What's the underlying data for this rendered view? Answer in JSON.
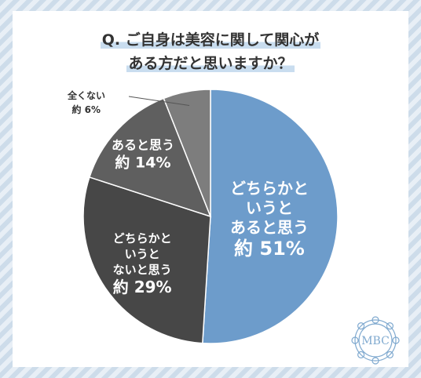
{
  "title": {
    "line1": "Q. ご自身は美容に関して関心が",
    "line2": "ある方だと思いますか？"
  },
  "chart_data": {
    "type": "pie",
    "title": "Q. ご自身は美容に関して関心がある方だと思いますか？",
    "slices": [
      {
        "label_lines": [
          "どちらかと",
          "いうと",
          "あると思う"
        ],
        "value": 51,
        "value_label": "約 51%",
        "color": "#6d9ccb"
      },
      {
        "label_lines": [
          "どちらかと",
          "いうと",
          "ないと思う"
        ],
        "value": 29,
        "value_label": "約 29%",
        "color": "#474747"
      },
      {
        "label_lines": [
          "あると思う"
        ],
        "value": 14,
        "value_label": "約 14%",
        "color": "#5f5f5f"
      },
      {
        "label_lines": [
          "全くない"
        ],
        "value": 6,
        "value_label": "約 6%",
        "color": "#7d7d7d"
      }
    ],
    "start": "12 o'clock",
    "direction": "clockwise"
  },
  "logo": {
    "text": "MBC"
  },
  "colors": {
    "accent": "#6d9ccb",
    "stripe_light": "#e8eff6",
    "stripe_dark": "#cddcea"
  }
}
